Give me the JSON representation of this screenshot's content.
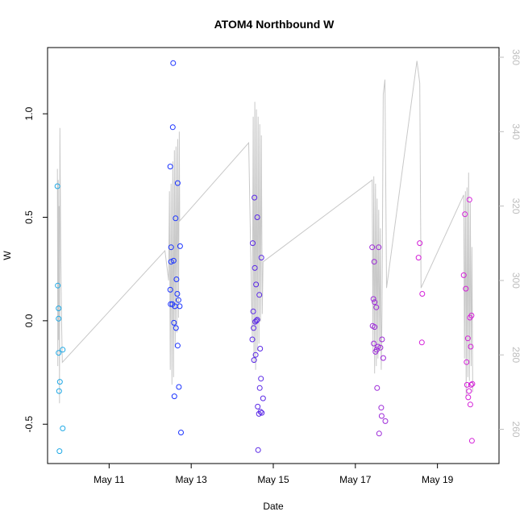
{
  "chart_data": {
    "type": "scatter",
    "title": "ATOM4 Northbound W",
    "xlabel": "Date",
    "ylabel": "W",
    "x_ticks": [
      {
        "label": "May 11",
        "value": 11
      },
      {
        "label": "May 13",
        "value": 13
      },
      {
        "label": "May 15",
        "value": 15
      },
      {
        "label": "May 17",
        "value": 17
      },
      {
        "label": "May 19",
        "value": 19
      }
    ],
    "y_ticks": [
      {
        "label": "-0.5",
        "value": -0.5
      },
      {
        "label": "0.0",
        "value": 0.0
      },
      {
        "label": "0.5",
        "value": 0.5
      },
      {
        "label": "1.0",
        "value": 1.0
      }
    ],
    "y2_ticks": [
      {
        "label": "260",
        "value": 260
      },
      {
        "label": "280",
        "value": 280
      },
      {
        "label": "300",
        "value": 300
      },
      {
        "label": "320",
        "value": 320
      },
      {
        "label": "340",
        "value": 340
      },
      {
        "label": "360",
        "value": 360
      }
    ],
    "xlim": [
      9.5,
      20.5
    ],
    "ylim": [
      -0.69,
      1.32
    ],
    "y2lim": [
      250.8,
      362.6
    ],
    "grid": false,
    "legend": "none",
    "point_colors": [
      "#1fa9e6",
      "#1a33ff",
      "#5a28e6",
      "#9c28d8",
      "#d41fd8"
    ],
    "line_color": "#c8c8c8",
    "points": [
      {
        "x": 9.74,
        "y": 0.65,
        "c": 0
      },
      {
        "x": 9.75,
        "y": 0.17,
        "c": 0
      },
      {
        "x": 9.77,
        "y": 0.06,
        "c": 0
      },
      {
        "x": 9.77,
        "y": 0.01,
        "c": 0
      },
      {
        "x": 9.77,
        "y": -0.155,
        "c": 0
      },
      {
        "x": 9.78,
        "y": -0.34,
        "c": 0
      },
      {
        "x": 9.79,
        "y": -0.63,
        "c": 0
      },
      {
        "x": 9.8,
        "y": -0.295,
        "c": 0
      },
      {
        "x": 9.87,
        "y": -0.14,
        "c": 0
      },
      {
        "x": 9.87,
        "y": -0.52,
        "c": 0
      },
      {
        "x": 12.49,
        "y": 0.745,
        "c": 1
      },
      {
        "x": 12.49,
        "y": 0.15,
        "c": 1
      },
      {
        "x": 12.5,
        "y": 0.08,
        "c": 1
      },
      {
        "x": 12.51,
        "y": 0.355,
        "c": 1
      },
      {
        "x": 12.51,
        "y": 0.285,
        "c": 1
      },
      {
        "x": 12.54,
        "y": 0.08,
        "c": 1
      },
      {
        "x": 12.55,
        "y": 0.935,
        "c": 1
      },
      {
        "x": 12.56,
        "y": 1.245,
        "c": 1
      },
      {
        "x": 12.57,
        "y": 0.29,
        "c": 1
      },
      {
        "x": 12.58,
        "y": -0.01,
        "c": 1
      },
      {
        "x": 12.59,
        "y": -0.365,
        "c": 1
      },
      {
        "x": 12.6,
        "y": 0.07,
        "c": 1
      },
      {
        "x": 12.62,
        "y": 0.495,
        "c": 1
      },
      {
        "x": 12.63,
        "y": -0.035,
        "c": 1
      },
      {
        "x": 12.64,
        "y": 0.2,
        "c": 1
      },
      {
        "x": 12.66,
        "y": 0.13,
        "c": 1
      },
      {
        "x": 12.67,
        "y": 0.665,
        "c": 1
      },
      {
        "x": 12.67,
        "y": -0.12,
        "c": 1
      },
      {
        "x": 12.69,
        "y": 0.1,
        "c": 1
      },
      {
        "x": 12.7,
        "y": -0.32,
        "c": 1
      },
      {
        "x": 12.72,
        "y": 0.07,
        "c": 1
      },
      {
        "x": 12.73,
        "y": 0.36,
        "c": 1
      },
      {
        "x": 12.75,
        "y": -0.54,
        "c": 1
      },
      {
        "x": 14.49,
        "y": -0.09,
        "c": 2
      },
      {
        "x": 14.5,
        "y": 0.375,
        "c": 2
      },
      {
        "x": 14.51,
        "y": 0.045,
        "c": 2
      },
      {
        "x": 14.52,
        "y": -0.035,
        "c": 2
      },
      {
        "x": 14.53,
        "y": -0.19,
        "c": 2
      },
      {
        "x": 14.54,
        "y": 0.595,
        "c": 2
      },
      {
        "x": 14.55,
        "y": 0.255,
        "c": 2
      },
      {
        "x": 14.56,
        "y": -0.005,
        "c": 2
      },
      {
        "x": 14.57,
        "y": -0.165,
        "c": 2
      },
      {
        "x": 14.58,
        "y": 0.175,
        "c": 2
      },
      {
        "x": 14.59,
        "y": 0.0,
        "c": 2
      },
      {
        "x": 14.61,
        "y": 0.005,
        "c": 2
      },
      {
        "x": 14.61,
        "y": 0.5,
        "c": 2
      },
      {
        "x": 14.62,
        "y": -0.415,
        "c": 2
      },
      {
        "x": 14.63,
        "y": -0.625,
        "c": 2
      },
      {
        "x": 14.65,
        "y": -0.45,
        "c": 2
      },
      {
        "x": 14.66,
        "y": 0.125,
        "c": 2
      },
      {
        "x": 14.67,
        "y": -0.325,
        "c": 2
      },
      {
        "x": 14.68,
        "y": -0.135,
        "c": 2
      },
      {
        "x": 14.69,
        "y": -0.44,
        "c": 2
      },
      {
        "x": 14.7,
        "y": -0.28,
        "c": 2
      },
      {
        "x": 14.71,
        "y": 0.305,
        "c": 2
      },
      {
        "x": 14.72,
        "y": -0.445,
        "c": 2
      },
      {
        "x": 14.75,
        "y": -0.375,
        "c": 2
      },
      {
        "x": 17.41,
        "y": 0.355,
        "c": 3
      },
      {
        "x": 17.42,
        "y": -0.025,
        "c": 3
      },
      {
        "x": 17.44,
        "y": 0.105,
        "c": 3
      },
      {
        "x": 17.45,
        "y": -0.11,
        "c": 3
      },
      {
        "x": 17.46,
        "y": 0.285,
        "c": 3
      },
      {
        "x": 17.47,
        "y": 0.09,
        "c": 3
      },
      {
        "x": 17.47,
        "y": -0.03,
        "c": 3
      },
      {
        "x": 17.49,
        "y": -0.15,
        "c": 3
      },
      {
        "x": 17.51,
        "y": 0.065,
        "c": 3
      },
      {
        "x": 17.52,
        "y": -0.14,
        "c": 3
      },
      {
        "x": 17.53,
        "y": -0.325,
        "c": 3
      },
      {
        "x": 17.55,
        "y": -0.125,
        "c": 3
      },
      {
        "x": 17.57,
        "y": 0.355,
        "c": 3
      },
      {
        "x": 17.58,
        "y": -0.545,
        "c": 3
      },
      {
        "x": 17.61,
        "y": -0.13,
        "c": 3
      },
      {
        "x": 17.63,
        "y": -0.42,
        "c": 3
      },
      {
        "x": 17.64,
        "y": -0.46,
        "c": 3
      },
      {
        "x": 17.65,
        "y": -0.09,
        "c": 3
      },
      {
        "x": 17.68,
        "y": -0.18,
        "c": 3
      },
      {
        "x": 17.73,
        "y": -0.485,
        "c": 3
      },
      {
        "x": 18.54,
        "y": 0.305,
        "c": 4
      },
      {
        "x": 18.57,
        "y": 0.375,
        "c": 4
      },
      {
        "x": 18.62,
        "y": -0.105,
        "c": 4
      },
      {
        "x": 18.63,
        "y": 0.13,
        "c": 4
      },
      {
        "x": 19.64,
        "y": 0.22,
        "c": 4
      },
      {
        "x": 19.67,
        "y": 0.515,
        "c": 4
      },
      {
        "x": 19.69,
        "y": 0.155,
        "c": 4
      },
      {
        "x": 19.71,
        "y": -0.2,
        "c": 4
      },
      {
        "x": 19.72,
        "y": -0.31,
        "c": 4
      },
      {
        "x": 19.74,
        "y": -0.085,
        "c": 4
      },
      {
        "x": 19.75,
        "y": -0.37,
        "c": 4
      },
      {
        "x": 19.77,
        "y": -0.34,
        "c": 4
      },
      {
        "x": 19.78,
        "y": 0.585,
        "c": 4
      },
      {
        "x": 19.79,
        "y": 0.015,
        "c": 4
      },
      {
        "x": 19.8,
        "y": -0.405,
        "c": 4
      },
      {
        "x": 19.81,
        "y": -0.125,
        "c": 4
      },
      {
        "x": 19.82,
        "y": -0.31,
        "c": 4
      },
      {
        "x": 19.83,
        "y": 0.025,
        "c": 4
      },
      {
        "x": 19.84,
        "y": -0.58,
        "c": 4
      },
      {
        "x": 19.85,
        "y": -0.305,
        "c": 4
      }
    ],
    "heading_line": [
      [
        9.74,
        330
      ],
      [
        9.75,
        277
      ],
      [
        9.76,
        327
      ],
      [
        9.77,
        284
      ],
      [
        9.78,
        320
      ],
      [
        9.79,
        267
      ],
      [
        9.8,
        341
      ],
      [
        9.82,
        309
      ],
      [
        9.84,
        290
      ],
      [
        9.86,
        278
      ],
      [
        12.36,
        308
      ],
      [
        12.45,
        300
      ],
      [
        12.47,
        324
      ],
      [
        12.49,
        276
      ],
      [
        12.51,
        326
      ],
      [
        12.53,
        272
      ],
      [
        12.55,
        332
      ],
      [
        12.57,
        274
      ],
      [
        12.59,
        335
      ],
      [
        12.61,
        282
      ],
      [
        12.63,
        336
      ],
      [
        12.65,
        286
      ],
      [
        12.67,
        338
      ],
      [
        12.69,
        290
      ],
      [
        12.71,
        340
      ],
      [
        12.72,
        316
      ],
      [
        14.4,
        337
      ],
      [
        14.49,
        284
      ],
      [
        14.51,
        344
      ],
      [
        14.53,
        278
      ],
      [
        14.55,
        348
      ],
      [
        14.57,
        276
      ],
      [
        14.59,
        346
      ],
      [
        14.61,
        281
      ],
      [
        14.63,
        344
      ],
      [
        14.65,
        283
      ],
      [
        14.67,
        342
      ],
      [
        14.69,
        289
      ],
      [
        14.71,
        339
      ],
      [
        14.73,
        291
      ],
      [
        14.75,
        305
      ],
      [
        17.41,
        327
      ],
      [
        17.43,
        281
      ],
      [
        17.45,
        328
      ],
      [
        17.47,
        275
      ],
      [
        17.49,
        326
      ],
      [
        17.51,
        277
      ],
      [
        17.53,
        322
      ],
      [
        17.55,
        279
      ],
      [
        17.57,
        319
      ],
      [
        17.59,
        281
      ],
      [
        17.61,
        314
      ],
      [
        17.63,
        276
      ],
      [
        17.65,
        292
      ],
      [
        17.68,
        350
      ],
      [
        17.72,
        354
      ],
      [
        17.76,
        298
      ],
      [
        18.5,
        359
      ],
      [
        18.57,
        353
      ],
      [
        18.6,
        298
      ],
      [
        19.64,
        323
      ],
      [
        19.66,
        279
      ],
      [
        19.68,
        324
      ],
      [
        19.7,
        269
      ],
      [
        19.72,
        325
      ],
      [
        19.74,
        274
      ],
      [
        19.76,
        329
      ],
      [
        19.78,
        273
      ],
      [
        19.8,
        321
      ],
      [
        19.82,
        277
      ],
      [
        19.84,
        309
      ],
      [
        19.86,
        270
      ]
    ]
  }
}
